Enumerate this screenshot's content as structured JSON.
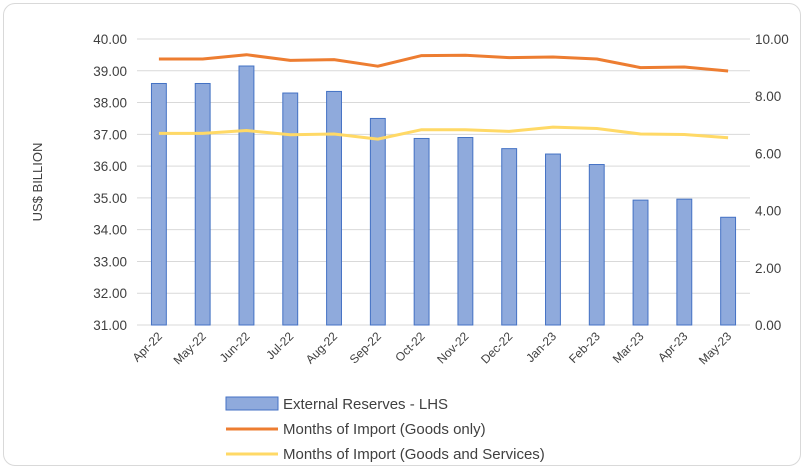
{
  "chart_data": {
    "type": "bar",
    "categories": [
      "Apr-22",
      "May-22",
      "Jun-22",
      "Jul-22",
      "Aug-22",
      "Sep-22",
      "Oct-22",
      "Nov-22",
      "Dec-22",
      "Jan-23",
      "Feb-23",
      "Mar-23",
      "Apr-23",
      "May-23"
    ],
    "ylabel": "US$ BILLION",
    "ylim": [
      31,
      40
    ],
    "y2lim": [
      0,
      10
    ],
    "yticks": [
      "31.00",
      "32.00",
      "33.00",
      "34.00",
      "35.00",
      "36.00",
      "37.00",
      "38.00",
      "39.00",
      "40.00"
    ],
    "y2ticks": [
      "0.00",
      "2.00",
      "4.00",
      "6.00",
      "8.00",
      "10.00"
    ],
    "series": [
      {
        "name": "External Reserves - LHS",
        "kind": "bar",
        "axis": "left",
        "color": "#8faadc",
        "values": [
          38.6,
          38.6,
          39.15,
          38.3,
          38.35,
          37.5,
          36.87,
          36.9,
          36.55,
          36.38,
          36.05,
          34.93,
          34.96,
          34.39
        ]
      },
      {
        "name": "Months of Import (Goods only)",
        "kind": "line",
        "axis": "right",
        "color": "#ed7d31",
        "values": [
          9.3,
          9.3,
          9.45,
          9.25,
          9.28,
          9.05,
          9.42,
          9.43,
          9.35,
          9.37,
          9.3,
          9.0,
          9.02,
          8.88
        ]
      },
      {
        "name": "Months of Import (Goods and Services)",
        "kind": "line",
        "axis": "right",
        "color": "#ffd966",
        "values": [
          6.7,
          6.7,
          6.8,
          6.65,
          6.68,
          6.5,
          6.83,
          6.83,
          6.77,
          6.92,
          6.87,
          6.68,
          6.66,
          6.55
        ]
      }
    ],
    "grid": true,
    "legend": "bottom"
  }
}
